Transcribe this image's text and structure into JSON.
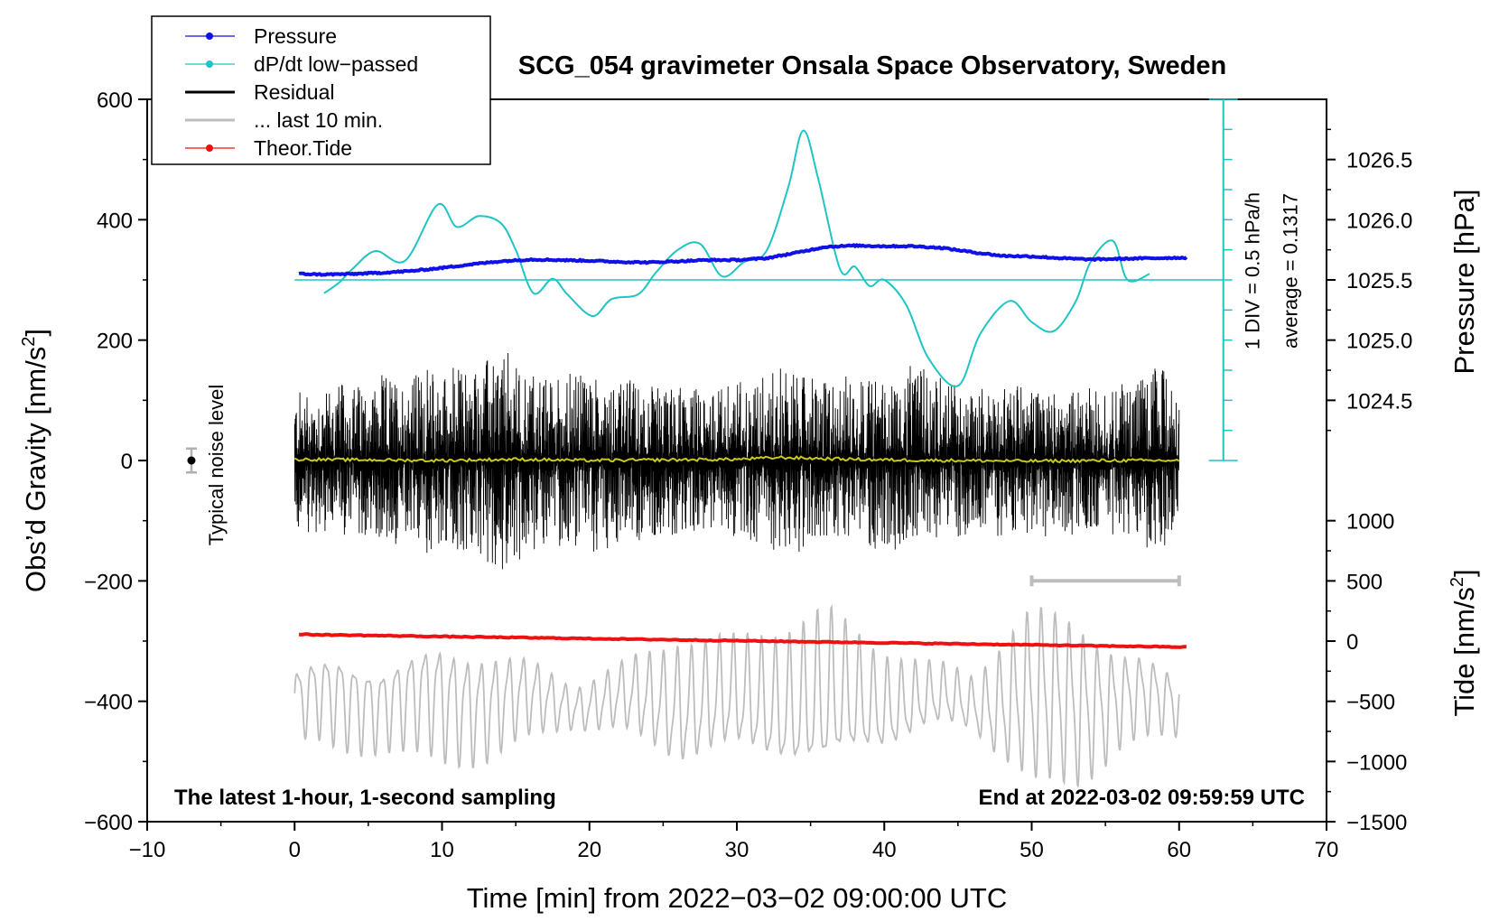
{
  "chart_data": {
    "type": "line",
    "title": "SCG_054 gravimeter Onsala Space Observatory, Sweden",
    "xlabel": "Time [min] from 2022−03−02 09:00:00 UTC",
    "ylabel": "Obs’d Gravity [nm/s²]",
    "ylabel_parts": [
      "Obs’d Gravity [nm/s",
      "2",
      "]"
    ],
    "right_top_label": "Pressure [hPa]",
    "right_bottom_label_parts": [
      "Tide [nm/s",
      "2",
      "]"
    ],
    "xlim": [
      -10,
      70
    ],
    "ylim": [
      -600,
      600
    ],
    "x_ticks": [
      -10,
      0,
      10,
      20,
      30,
      40,
      50,
      60,
      70
    ],
    "x_tick_labels": [
      "−10",
      "0",
      "10",
      "20",
      "30",
      "40",
      "50",
      "60",
      "70"
    ],
    "y_ticks": [
      600,
      400,
      200,
      0,
      -200,
      -400,
      -600
    ],
    "y_tick_labels": [
      "600",
      "400",
      "200",
      "0",
      "−200",
      "−400",
      "−600"
    ],
    "pressure_axis": {
      "ticks": [
        1026.5,
        1026.0,
        1025.5,
        1025.0,
        1024.5
      ],
      "tick_labels": [
        "1026.5",
        "1026.0",
        "1025.5",
        "1025.0",
        "1024.5"
      ],
      "gravity_per_hpa": 200,
      "ref_hpa": 1025.5,
      "ref_gravity": 300
    },
    "tide_axis": {
      "ticks": [
        1000,
        500,
        0,
        -500,
        -1000,
        -1500
      ],
      "tick_labels": [
        "1000",
        "500",
        "0",
        "−500",
        "−1000",
        "−1500"
      ],
      "gravity_per_unit": 0.2,
      "ref_tide": 0,
      "ref_gravity": -300
    },
    "dpdt_scale": {
      "text_div": "1 DIV = 0.5 hPa/h",
      "text_avg": "average = 0.1317",
      "x": 63,
      "y_range": [
        0,
        600
      ],
      "div_step": 50,
      "color": "#1fc4c4"
    },
    "noise_indicator": {
      "label": "Typical noise level",
      "x": -7,
      "center": 0,
      "half_range": 20
    },
    "last10_bar": {
      "x_range": [
        50,
        60
      ],
      "y": -200,
      "color": "#bdbdbd"
    },
    "bottom_left_note": "The latest 1-hour, 1-second sampling",
    "bottom_right_note": "End at 2022-03-02 09:59:59 UTC",
    "legend": [
      {
        "name": "Pressure",
        "color": "#1010e8",
        "marker": true
      },
      {
        "name": "dP/dt low−passed",
        "color": "#1fc4c4",
        "marker": true
      },
      {
        "name": "Residual",
        "color": "#000000",
        "marker": false
      },
      {
        "name": "... last 10 min.",
        "color": "#bdbdbd",
        "marker": false
      },
      {
        "name": "Theor.Tide",
        "color": "#ee1111",
        "marker": true
      }
    ],
    "series": [
      {
        "name": "Pressure",
        "color": "#1010e8",
        "x": [
          0.3,
          2,
          4,
          6,
          8,
          10,
          12,
          14,
          16,
          18,
          20,
          22,
          24,
          26,
          28,
          30,
          32,
          34,
          36,
          38,
          40,
          42,
          44,
          46,
          48,
          50,
          52,
          54,
          56,
          58,
          60.5
        ],
        "y": [
          310,
          309,
          310,
          312,
          315,
          320,
          326,
          331,
          334,
          333,
          332,
          330,
          329,
          331,
          333,
          333,
          336,
          345,
          355,
          357,
          356,
          356,
          353,
          346,
          340,
          339,
          336,
          334,
          335,
          336,
          337
        ]
      },
      {
        "name": "dP/dt low-passed",
        "color": "#1fc4c4",
        "x": [
          2,
          3,
          4,
          5.5,
          7.5,
          9.7,
          11,
          12.5,
          14,
          15,
          16.2,
          17.5,
          18.5,
          20.2,
          21.5,
          23.3,
          24.5,
          26,
          27.5,
          29,
          30.5,
          32,
          33.5,
          34.5,
          35.5,
          37,
          38,
          39,
          40,
          41.5,
          43,
          45,
          46.5,
          48.5,
          50,
          51.5,
          53,
          54,
          55.5,
          56.5,
          58
        ],
        "y": [
          278,
          295,
          320,
          348,
          332,
          425,
          388,
          406,
          394,
          350,
          278,
          302,
          276,
          240,
          268,
          276,
          312,
          350,
          360,
          306,
          330,
          348,
          455,
          548,
          470,
          318,
          322,
          290,
          300,
          258,
          170,
          124,
          210,
          265,
          230,
          215,
          265,
          330,
          365,
          300,
          310
        ]
      },
      {
        "name": "Residual",
        "color": "#000000",
        "x_range": [
          0,
          60
        ],
        "approx_amplitude": 140,
        "envelope_x": [
          0,
          4,
          8,
          12,
          14,
          17,
          20,
          24,
          28,
          33,
          36,
          40,
          43,
          46,
          50,
          55,
          59,
          60
        ],
        "envelope_y": [
          110,
          120,
          140,
          150,
          175,
          130,
          145,
          120,
          110,
          150,
          125,
          140,
          145,
          110,
          120,
          110,
          150,
          100
        ]
      },
      {
        "name": "Residual smoothed",
        "color": "#c8c81e",
        "x": [
          0,
          5,
          10,
          15,
          20,
          25,
          30,
          33,
          36,
          40,
          45,
          50,
          55,
          60
        ],
        "y": [
          2,
          1,
          0,
          2,
          0,
          1,
          2,
          5,
          3,
          1,
          0,
          -1,
          0,
          0
        ]
      },
      {
        "name": "... last 10 min.",
        "color": "#bdbdbd",
        "x_range": [
          0,
          60
        ],
        "center_y": -400,
        "approx_amplitude": 90,
        "envelope_x": [
          0,
          3,
          6,
          10,
          13,
          16,
          19,
          22,
          26,
          30,
          33,
          36,
          39,
          43,
          46,
          50,
          53,
          56,
          60
        ],
        "envelope_y": [
          60,
          80,
          70,
          100,
          90,
          65,
          35,
          55,
          100,
          95,
          110,
          140,
          90,
          55,
          45,
          150,
          140,
          80,
          50
        ]
      },
      {
        "name": "Theor.Tide",
        "color": "#ee1111",
        "x": [
          0.3,
          60.5
        ],
        "y": [
          -289,
          -310
        ]
      }
    ]
  }
}
